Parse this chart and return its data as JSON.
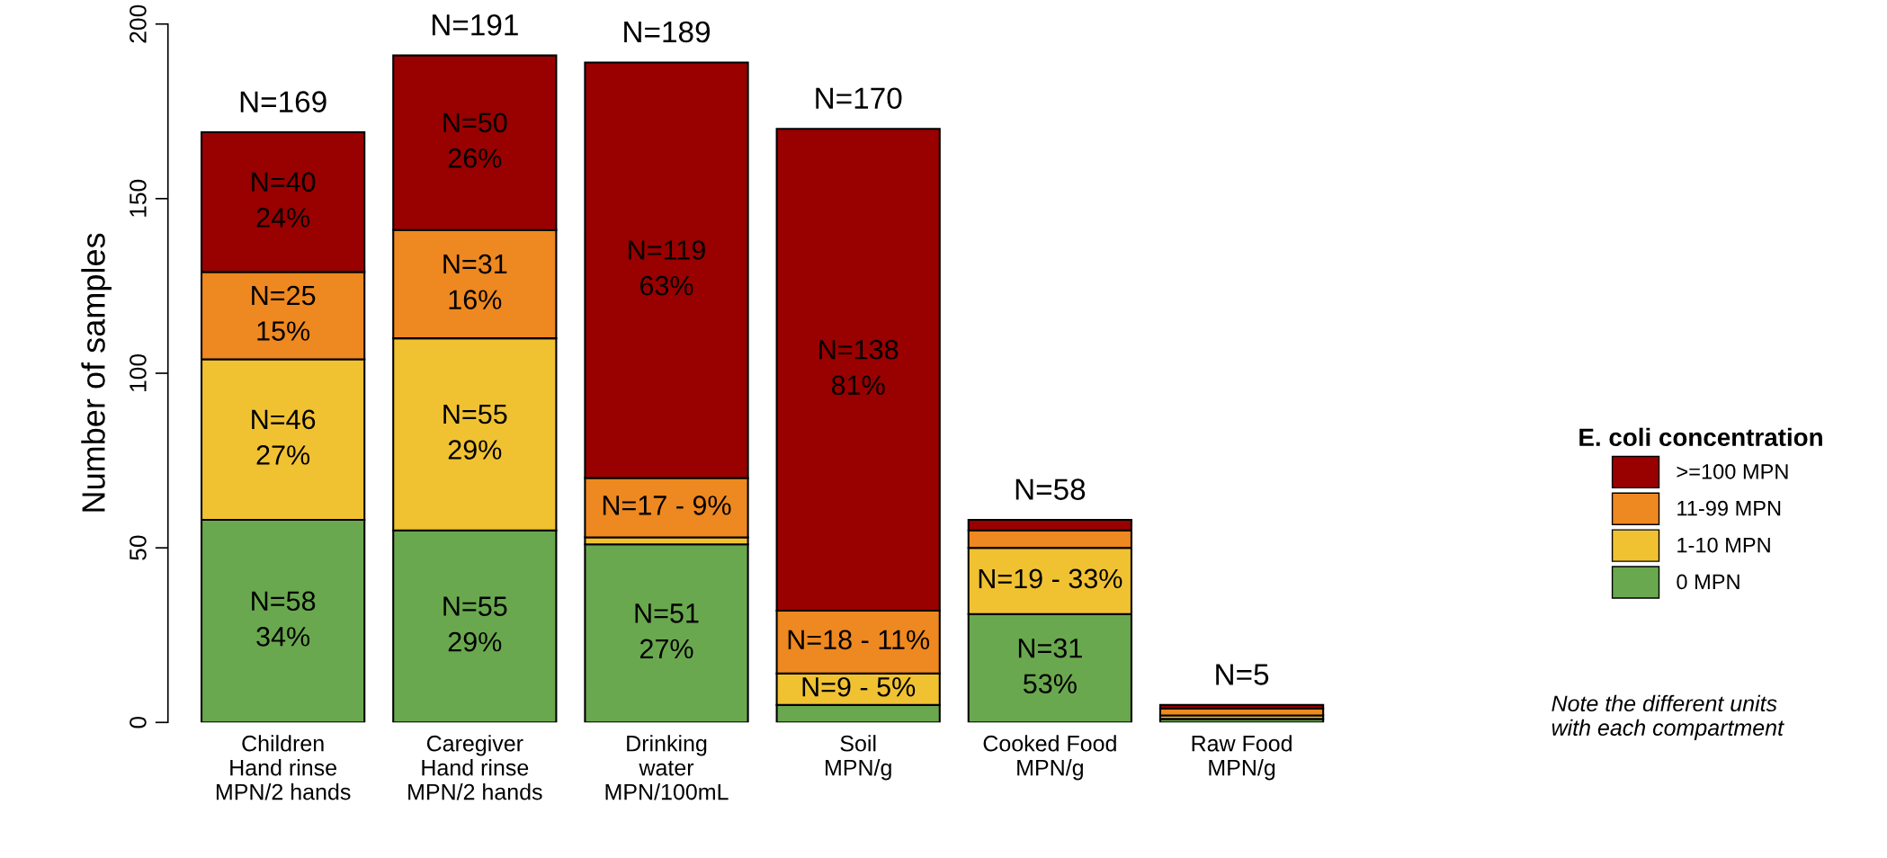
{
  "chart_data": {
    "type": "bar",
    "stacked": true,
    "ylabel": "Number of samples",
    "legend_title": "E. coli concentration",
    "legend": "right",
    "categories": [
      "Children\nHand rinse\nMPN/2 hands",
      "Caregiver\nHand rinse\nMPN/2 hands",
      "Drinking\nwater\nMPN/100mL",
      "Soil\nMPN/g",
      "Cooked Food\nMPN/g",
      "Raw Food\nMPN/g"
    ],
    "series": [
      {
        "name": "0 MPN",
        "color": "#6aa84f",
        "values": [
          58,
          55,
          51,
          5,
          31,
          1
        ],
        "value_labels": [
          "N=58\n34%",
          "N=55\n29%",
          "N=51\n27%",
          null,
          "N=31\n53%",
          null
        ]
      },
      {
        "name": "1-10 MPN",
        "color": "#f0c232",
        "values": [
          46,
          55,
          2,
          9,
          19,
          1
        ],
        "value_labels": [
          "N=46\n27%",
          "N=55\n29%",
          null,
          "N=9 - 5%",
          "N=19 - 33%",
          null
        ]
      },
      {
        "name": "11-99 MPN",
        "color": "#ee8820",
        "values": [
          25,
          31,
          17,
          18,
          5,
          2
        ],
        "value_labels": [
          "N=25\n15%",
          "N=31\n16%",
          "N=17 - 9%",
          "N=18 - 11%",
          null,
          null
        ]
      },
      {
        "name": ">=100 MPN",
        "color": "#990000",
        "values": [
          40,
          50,
          119,
          138,
          3,
          1
        ],
        "value_labels": [
          "N=40\n24%",
          "N=50\n26%",
          "N=119\n63%",
          "N=138\n81%",
          null,
          null
        ]
      }
    ],
    "totals": [
      "N=169",
      "N=191",
      "N=189",
      "N=170",
      "N=58",
      "N=5"
    ],
    "ylim": [
      0,
      200
    ],
    "yticks": [
      0,
      50,
      100,
      150,
      200
    ],
    "grid": false,
    "annotations": [
      "Note the different units\nwith each compartment"
    ]
  }
}
